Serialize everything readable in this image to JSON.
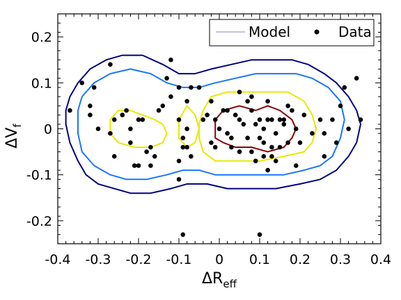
{
  "chart_data": {
    "type": "scatter",
    "xlabel": {
      "main": "ΔR",
      "sub": "eff"
    },
    "ylabel": {
      "main": "ΔV",
      "sub": "f"
    },
    "xlim": [
      -0.4,
      0.4
    ],
    "ylim": [
      -0.25,
      0.25
    ],
    "x_ticks": [
      -0.4,
      -0.3,
      -0.2,
      -0.1,
      0,
      0.1,
      0.2,
      0.3,
      0.4
    ],
    "x_tick_labels": [
      "-0.4",
      "-0.3",
      "-0.2",
      "-0.1",
      "0",
      "0.1",
      "0.2",
      "0.3",
      "0.4"
    ],
    "y_ticks": [
      -0.2,
      -0.1,
      0,
      0.1,
      0.2
    ],
    "y_tick_labels": [
      "-0.2",
      "-0.1",
      "0",
      "0.1",
      "0.2"
    ],
    "grid": false,
    "legend": {
      "placement": "top-right",
      "entries": [
        {
          "label": "Model",
          "marker": "line",
          "color": "#8888bb"
        },
        {
          "label": "Data",
          "marker": "dot",
          "color": "#000000"
        }
      ]
    },
    "model_contours": [
      {
        "level": "outer",
        "color": "#000080",
        "points": [
          [
            -0.38,
            0.04
          ],
          [
            -0.37,
            0.07
          ],
          [
            -0.35,
            0.1
          ],
          [
            -0.32,
            0.13
          ],
          [
            -0.28,
            0.15
          ],
          [
            -0.24,
            0.16
          ],
          [
            -0.19,
            0.16
          ],
          [
            -0.14,
            0.14
          ],
          [
            -0.1,
            0.12
          ],
          [
            -0.06,
            0.12
          ],
          [
            -0.02,
            0.13
          ],
          [
            0.03,
            0.14
          ],
          [
            0.08,
            0.15
          ],
          [
            0.13,
            0.15
          ],
          [
            0.18,
            0.15
          ],
          [
            0.22,
            0.14
          ],
          [
            0.26,
            0.12
          ],
          [
            0.29,
            0.1
          ],
          [
            0.32,
            0.07
          ],
          [
            0.34,
            0.04
          ],
          [
            0.35,
            0.01
          ],
          [
            0.34,
            -0.03
          ],
          [
            0.32,
            -0.06
          ],
          [
            0.29,
            -0.09
          ],
          [
            0.25,
            -0.11
          ],
          [
            0.2,
            -0.12
          ],
          [
            0.14,
            -0.13
          ],
          [
            0.08,
            -0.13
          ],
          [
            0.02,
            -0.13
          ],
          [
            -0.03,
            -0.12
          ],
          [
            -0.08,
            -0.12
          ],
          [
            -0.12,
            -0.13
          ],
          [
            -0.17,
            -0.14
          ],
          [
            -0.22,
            -0.14
          ],
          [
            -0.26,
            -0.13
          ],
          [
            -0.3,
            -0.12
          ],
          [
            -0.33,
            -0.1
          ],
          [
            -0.35,
            -0.07
          ],
          [
            -0.37,
            -0.03
          ],
          [
            -0.38,
            0.01
          ]
        ]
      },
      {
        "level": "middle",
        "color": "#1a75ff",
        "points": [
          [
            -0.35,
            0.04
          ],
          [
            -0.34,
            0.07
          ],
          [
            -0.31,
            0.1
          ],
          [
            -0.27,
            0.12
          ],
          [
            -0.22,
            0.13
          ],
          [
            -0.17,
            0.12
          ],
          [
            -0.13,
            0.1
          ],
          [
            -0.09,
            0.09
          ],
          [
            -0.05,
            0.09
          ],
          [
            -0.01,
            0.1
          ],
          [
            0.04,
            0.11
          ],
          [
            0.09,
            0.12
          ],
          [
            0.14,
            0.12
          ],
          [
            0.19,
            0.12
          ],
          [
            0.23,
            0.11
          ],
          [
            0.27,
            0.09
          ],
          [
            0.3,
            0.06
          ],
          [
            0.31,
            0.02
          ],
          [
            0.3,
            -0.02
          ],
          [
            0.28,
            -0.06
          ],
          [
            0.25,
            -0.08
          ],
          [
            0.21,
            -0.09
          ],
          [
            0.16,
            -0.1
          ],
          [
            0.1,
            -0.1
          ],
          [
            0.04,
            -0.1
          ],
          [
            -0.01,
            -0.1
          ],
          [
            -0.05,
            -0.09
          ],
          [
            -0.09,
            -0.09
          ],
          [
            -0.13,
            -0.1
          ],
          [
            -0.18,
            -0.11
          ],
          [
            -0.23,
            -0.11
          ],
          [
            -0.27,
            -0.1
          ],
          [
            -0.31,
            -0.08
          ],
          [
            -0.34,
            -0.05
          ],
          [
            -0.35,
            -0.01
          ]
        ]
      },
      {
        "level": "inner-right",
        "color": "#e8e800",
        "points": [
          [
            -0.04,
            0.04
          ],
          [
            -0.02,
            0.07
          ],
          [
            0.02,
            0.08
          ],
          [
            0.07,
            0.08
          ],
          [
            0.12,
            0.08
          ],
          [
            0.17,
            0.08
          ],
          [
            0.21,
            0.06
          ],
          [
            0.23,
            0.03
          ],
          [
            0.24,
            0.0
          ],
          [
            0.23,
            -0.03
          ],
          [
            0.21,
            -0.05
          ],
          [
            0.16,
            -0.06
          ],
          [
            0.1,
            -0.07
          ],
          [
            0.04,
            -0.07
          ],
          [
            -0.01,
            -0.07
          ],
          [
            -0.04,
            -0.05
          ],
          [
            -0.05,
            -0.02
          ],
          [
            -0.05,
            0.01
          ]
        ]
      },
      {
        "level": "inner-left",
        "color": "#e8e800",
        "points": [
          [
            -0.27,
            0.02
          ],
          [
            -0.25,
            0.04
          ],
          [
            -0.22,
            0.04
          ],
          [
            -0.19,
            0.03
          ],
          [
            -0.16,
            0.02
          ],
          [
            -0.14,
            0.01
          ],
          [
            -0.13,
            -0.01
          ],
          [
            -0.14,
            -0.03
          ],
          [
            -0.17,
            -0.04
          ],
          [
            -0.21,
            -0.04
          ],
          [
            -0.25,
            -0.03
          ],
          [
            -0.27,
            -0.01
          ]
        ]
      },
      {
        "level": "inner-mid",
        "color": "#e8e800",
        "points": [
          [
            -0.08,
            0.05
          ],
          [
            -0.06,
            0.03
          ],
          [
            -0.05,
            0.0
          ],
          [
            -0.06,
            -0.03
          ],
          [
            -0.08,
            -0.04
          ],
          [
            -0.1,
            -0.02
          ],
          [
            -0.1,
            0.02
          ]
        ]
      },
      {
        "level": "core",
        "color": "#8b0000",
        "points": [
          [
            -0.01,
            0.02
          ],
          [
            0.01,
            0.04
          ],
          [
            0.05,
            0.05
          ],
          [
            0.09,
            0.04
          ],
          [
            0.12,
            0.05
          ],
          [
            0.15,
            0.04
          ],
          [
            0.18,
            0.02
          ],
          [
            0.19,
            0.0
          ],
          [
            0.18,
            -0.02
          ],
          [
            0.16,
            -0.04
          ],
          [
            0.12,
            -0.05
          ],
          [
            0.08,
            -0.04
          ],
          [
            0.04,
            -0.04
          ],
          [
            0.01,
            -0.03
          ],
          [
            -0.01,
            -0.02
          ]
        ]
      }
    ],
    "data_points": [
      [
        -0.37,
        0.04
      ],
      [
        -0.34,
        0.1
      ],
      [
        -0.32,
        0.05
      ],
      [
        -0.32,
        0.03
      ],
      [
        -0.31,
        0.09
      ],
      [
        -0.3,
        0.0
      ],
      [
        -0.27,
        0.14
      ],
      [
        -0.27,
        -0.01
      ],
      [
        -0.26,
        0.02
      ],
      [
        -0.26,
        -0.06
      ],
      [
        -0.24,
        0.03
      ],
      [
        -0.23,
        0.04
      ],
      [
        -0.22,
        0.0
      ],
      [
        -0.22,
        -0.03
      ],
      [
        -0.21,
        -0.08
      ],
      [
        -0.2,
        -0.08
      ],
      [
        -0.2,
        0.02
      ],
      [
        -0.19,
        0.02
      ],
      [
        -0.18,
        -0.05
      ],
      [
        -0.17,
        -0.04
      ],
      [
        -0.16,
        -0.06
      ],
      [
        -0.17,
        -0.08
      ],
      [
        -0.15,
        0.04
      ],
      [
        -0.14,
        0.05
      ],
      [
        -0.13,
        0.11
      ],
      [
        -0.12,
        0.07
      ],
      [
        -0.1,
        0.02
      ],
      [
        -0.1,
        -0.07
      ],
      [
        -0.09,
        -0.02
      ],
      [
        -0.08,
        0.06
      ],
      [
        -0.08,
        0.0
      ],
      [
        -0.08,
        -0.04
      ],
      [
        -0.07,
        0.09
      ],
      [
        -0.07,
        -0.06
      ],
      [
        -0.05,
        0.09
      ],
      [
        -0.04,
        0.02
      ],
      [
        -0.03,
        0.03
      ],
      [
        -0.02,
        0.06
      ],
      [
        -0.02,
        -0.03
      ],
      [
        -0.01,
        -0.04
      ],
      [
        0.0,
        0.0
      ],
      [
        0.01,
        0.04
      ],
      [
        0.02,
        0.04
      ],
      [
        0.02,
        -0.01
      ],
      [
        0.03,
        -0.04
      ],
      [
        0.04,
        0.03
      ],
      [
        0.05,
        0.08
      ],
      [
        0.05,
        0.02
      ],
      [
        0.05,
        -0.05
      ],
      [
        0.06,
        0.01
      ],
      [
        0.07,
        -0.02
      ],
      [
        0.08,
        0.04
      ],
      [
        0.08,
        -0.05
      ],
      [
        0.09,
        0.01
      ],
      [
        0.09,
        -0.07
      ],
      [
        0.1,
        0.02
      ],
      [
        0.1,
        -0.02
      ],
      [
        0.11,
        0.0
      ],
      [
        0.11,
        -0.06
      ],
      [
        0.12,
        0.06
      ],
      [
        0.12,
        0.02
      ],
      [
        0.12,
        -0.09
      ],
      [
        0.13,
        0.02
      ],
      [
        0.13,
        -0.04
      ],
      [
        0.14,
        -0.01
      ],
      [
        0.14,
        -0.07
      ],
      [
        0.15,
        0.02
      ],
      [
        0.15,
        -0.04
      ],
      [
        0.16,
        0.02
      ],
      [
        0.17,
        0.05
      ],
      [
        0.17,
        -0.03
      ],
      [
        0.18,
        0.04
      ],
      [
        0.19,
        0.0
      ],
      [
        0.19,
        -0.08
      ],
      [
        0.2,
        -0.03
      ],
      [
        0.21,
        0.03
      ],
      [
        0.23,
        -0.01
      ],
      [
        0.25,
        0.02
      ],
      [
        0.26,
        -0.01
      ],
      [
        0.26,
        -0.06
      ],
      [
        0.28,
        0.02
      ],
      [
        0.29,
        -0.03
      ],
      [
        0.3,
        0.05
      ],
      [
        0.31,
        0.09
      ],
      [
        0.32,
        0.0
      ],
      [
        0.34,
        0.11
      ],
      [
        0.35,
        0.02
      ],
      [
        -0.12,
        0.15
      ],
      [
        -0.1,
        0.09
      ],
      [
        -0.09,
        -0.04
      ],
      [
        -0.1,
        -0.11
      ],
      [
        -0.09,
        -0.23
      ],
      [
        0.1,
        -0.23
      ],
      [
        0.08,
        0.07
      ],
      [
        0.07,
        0.06
      ],
      [
        0.11,
        -0.03
      ],
      [
        0.16,
        0.01
      ],
      [
        0.13,
        -0.06
      ],
      [
        0.03,
        -0.02
      ],
      [
        -0.01,
        0.02
      ]
    ]
  }
}
